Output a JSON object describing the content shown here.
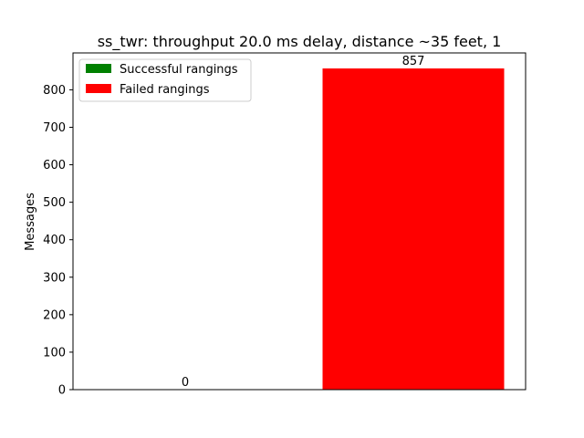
{
  "chart_data": {
    "type": "bar",
    "title": "ss_twr: throughput 20.0 ms delay, distance ~35 feet, 1",
    "xlabel": "",
    "ylabel": "Messages",
    "categories": [
      "",
      ""
    ],
    "series": [
      {
        "name": "Successful rangings",
        "color": "#008000",
        "values": [
          0,
          null
        ]
      },
      {
        "name": "Failed rangings",
        "color": "#ff0000",
        "values": [
          null,
          857
        ]
      }
    ],
    "data_labels": [
      "0",
      "857"
    ],
    "ylim": [
      0,
      857
    ],
    "yticks": [
      0,
      100,
      200,
      300,
      400,
      500,
      600,
      700,
      800
    ],
    "grid": false,
    "legend_position": "top-left"
  }
}
